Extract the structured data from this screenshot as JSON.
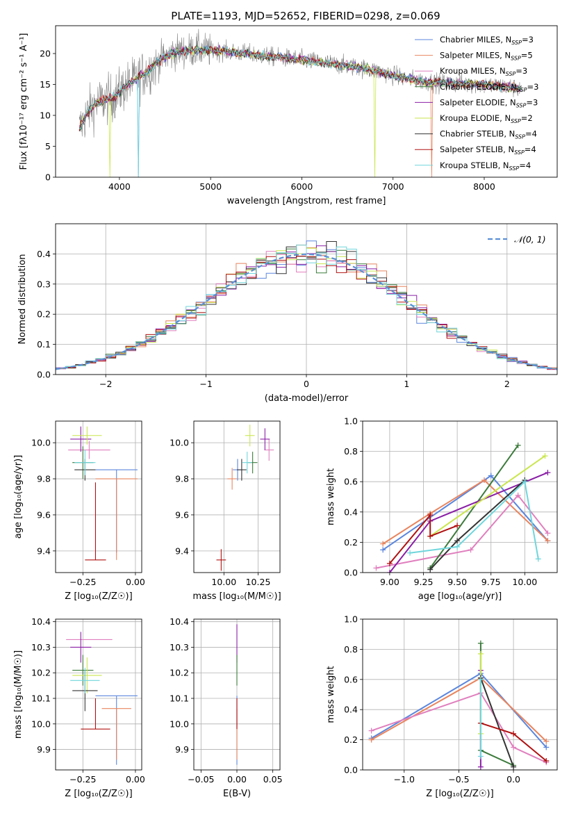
{
  "figure_title": "PLATE=1193, MJD=52652, FIBERID=0298, z=0.069",
  "colors": {
    "chabrier_miles": "#5b86dd",
    "salpeter_miles": "#e8845e",
    "kroupa_miles": "#e07fbe",
    "chabrier_elodie": "#3b7a3b",
    "salpeter_elodie": "#8a1fa6",
    "kroupa_elodie": "#c9e64d",
    "chabrier_stelib": "#333333",
    "salpeter_stelib": "#b01010",
    "kroupa_stelib": "#6fd6dc",
    "normal_curve": "#5b8fd6",
    "observed_spectrum": "#808080"
  },
  "chart_data": [
    {
      "id": "spectrum",
      "type": "line",
      "title": "",
      "xlabel": "wavelength [Angstrom, rest frame]",
      "ylabel": "Flux [fλ10⁻¹⁷ erg cm⁻² s⁻¹ A⁻¹]",
      "xlim": [
        3300,
        8800
      ],
      "ylim": [
        0,
        24.5
      ],
      "xticks": [
        4000,
        5000,
        6000,
        7000,
        8000
      ],
      "yticks": [
        0,
        5,
        10,
        15,
        20
      ],
      "grid": false,
      "legend_position": "top-right",
      "legend": [
        "Chabrier MILES, N_SSP=3",
        "Salpeter MILES, N_SSP=5",
        "Kroupa MILES, N_SSP=3",
        "Chabrier ELODIE, N_SSP=3",
        "Salpeter ELODIE, N_SSP=3",
        "Kroupa ELODIE, N_SSP=2",
        "Chabrier STELIB, N_SSP=4",
        "Salpeter STELIB, N_SSP=4",
        "Kroupa STELIB, N_SSP=4"
      ],
      "continuum": {
        "x": [
          3550,
          3650,
          3750,
          3850,
          3950,
          4050,
          4150,
          4300,
          4450,
          4600,
          4800,
          5000,
          5200,
          5400,
          5600,
          5800,
          6000,
          6200,
          6400,
          6600,
          6800,
          7000,
          7200,
          7400,
          7600,
          7800,
          8000,
          8200,
          8400
        ],
        "y": [
          7.5,
          10.5,
          12.0,
          12.5,
          13.0,
          14.5,
          15.5,
          17.0,
          19.0,
          20.2,
          20.6,
          20.5,
          20.3,
          20.0,
          19.6,
          19.3,
          19.0,
          18.6,
          18.2,
          17.8,
          17.2,
          16.5,
          15.8,
          15.4,
          15.2,
          15.1,
          14.9,
          14.7,
          14.3
        ]
      }
    },
    {
      "id": "residuals",
      "type": "bar",
      "title": "",
      "xlabel": "(data-model)/error",
      "ylabel": "Normed distribution",
      "xlim": [
        -2.5,
        2.5
      ],
      "ylim": [
        0,
        0.5
      ],
      "xticks": [
        -2,
        -1,
        0,
        1,
        2
      ],
      "yticks": [
        0.0,
        0.1,
        0.2,
        0.3,
        0.4
      ],
      "grid": true,
      "legend_position": "top-right",
      "legend": [
        "𝒩(0, 1)"
      ],
      "bin_width": 0.1
    },
    {
      "id": "age_vs_z",
      "type": "scatter",
      "xlabel": "Z [log₁₀(Z/Z☉)]",
      "ylabel": "age  [log₁₀(age/yr)]",
      "xlim": [
        -0.38,
        0.03
      ],
      "ylim": [
        9.28,
        10.12
      ],
      "xticks": [
        -0.25,
        0.0
      ],
      "yticks": [
        9.4,
        9.6,
        9.8,
        10.0
      ],
      "grid": true,
      "series": [
        {
          "key": "chabrier_miles",
          "x": -0.09,
          "xerr": [
            0.1,
            0.1
          ],
          "y": 9.85,
          "yerr": [
            0.46,
            0.0
          ]
        },
        {
          "key": "salpeter_miles",
          "x": -0.09,
          "xerr": [
            0.1,
            0.1
          ],
          "y": 9.8,
          "yerr": [
            0.45,
            0.0
          ]
        },
        {
          "key": "kroupa_miles",
          "x": -0.22,
          "xerr": [
            0.1,
            0.1
          ],
          "y": 9.96,
          "yerr": [
            0.05,
            0.05
          ]
        },
        {
          "key": "chabrier_elodie",
          "x": -0.25,
          "xerr": [
            0.05,
            0.05
          ],
          "y": 9.89,
          "yerr": [
            0.09,
            0.09
          ]
        },
        {
          "key": "salpeter_elodie",
          "x": -0.26,
          "xerr": [
            0.05,
            0.05
          ],
          "y": 10.02,
          "yerr": [
            0.07,
            0.07
          ]
        },
        {
          "key": "kroupa_elodie",
          "x": -0.23,
          "xerr": [
            0.07,
            0.07
          ],
          "y": 10.04,
          "yerr": [
            0.05,
            0.05
          ]
        },
        {
          "key": "chabrier_stelib",
          "x": -0.24,
          "xerr": [
            0.05,
            0.05
          ],
          "y": 9.85,
          "yerr": [
            0.06,
            0.06
          ]
        },
        {
          "key": "salpeter_stelib",
          "x": -0.19,
          "xerr": [
            0.05,
            0.05
          ],
          "y": 9.35,
          "yerr": [
            0.0,
            0.43
          ]
        },
        {
          "key": "kroupa_stelib",
          "x": -0.24,
          "xerr": [
            0.05,
            0.05
          ],
          "y": 9.89,
          "yerr": [
            0.07,
            0.07
          ]
        }
      ]
    },
    {
      "id": "age_vs_mass",
      "type": "scatter",
      "xlabel": "mass [log₁₀(M/M☉)]",
      "ylabel": "",
      "xlim": [
        9.78,
        10.41
      ],
      "ylim": [
        9.28,
        10.12
      ],
      "xticks": [
        10.0,
        10.25
      ],
      "yticks": [
        9.4,
        9.6,
        9.8,
        10.0
      ],
      "grid": true,
      "series": [
        {
          "key": "chabrier_miles",
          "x": 10.1,
          "y": 9.85
        },
        {
          "key": "salpeter_miles",
          "x": 10.06,
          "y": 9.8
        },
        {
          "key": "kroupa_miles",
          "x": 10.33,
          "y": 9.96
        },
        {
          "key": "chabrier_elodie",
          "x": 10.21,
          "y": 9.89
        },
        {
          "key": "salpeter_elodie",
          "x": 10.3,
          "y": 10.02
        },
        {
          "key": "kroupa_elodie",
          "x": 10.19,
          "y": 10.04
        },
        {
          "key": "chabrier_stelib",
          "x": 10.13,
          "y": 9.85
        },
        {
          "key": "salpeter_stelib",
          "x": 9.98,
          "y": 9.35
        },
        {
          "key": "kroupa_stelib",
          "x": 10.17,
          "y": 9.89
        }
      ]
    },
    {
      "id": "weight_vs_age",
      "type": "line",
      "xlabel": "age  [log₁₀(age/yr)]",
      "ylabel": "mass weight",
      "xlim": [
        8.8,
        10.24
      ],
      "ylim": [
        0,
        1.0
      ],
      "xticks": [
        9.0,
        9.25,
        9.5,
        9.75,
        10.0
      ],
      "yticks": [
        0.0,
        0.2,
        0.4,
        0.6,
        0.8,
        1.0
      ],
      "grid": true,
      "series": [
        {
          "key": "chabrier_miles",
          "x": [
            8.95,
            9.75,
            10.17
          ],
          "y": [
            0.15,
            0.64,
            0.21
          ]
        },
        {
          "key": "salpeter_miles",
          "x": [
            8.95,
            9.3,
            9.7,
            10.17
          ],
          "y": [
            0.19,
            0.39,
            0.61,
            0.21
          ]
        },
        {
          "key": "kroupa_miles",
          "x": [
            8.9,
            9.6,
            9.95,
            10.17
          ],
          "y": [
            0.03,
            0.15,
            0.51,
            0.26
          ]
        },
        {
          "key": "chabrier_elodie",
          "x": [
            9.3,
            9.95
          ],
          "y": [
            0.03,
            0.84
          ]
        },
        {
          "key": "salpeter_elodie",
          "x": [
            9.0,
            9.3,
            10.17
          ],
          "y": [
            0.0,
            0.34,
            0.66
          ]
        },
        {
          "key": "kroupa_elodie",
          "x": [
            9.3,
            10.15
          ],
          "y": [
            0.24,
            0.77
          ]
        },
        {
          "key": "chabrier_stelib",
          "x": [
            9.3,
            9.5,
            10.0
          ],
          "y": [
            0.02,
            0.21,
            0.61
          ]
        },
        {
          "key": "salpeter_stelib",
          "x": [
            9.0,
            9.3,
            9.3,
            9.5
          ],
          "y": [
            0.06,
            0.38,
            0.24,
            0.31
          ]
        },
        {
          "key": "kroupa_stelib",
          "x": [
            9.15,
            9.5,
            10.0,
            10.1
          ],
          "y": [
            0.13,
            0.17,
            0.6,
            0.09
          ]
        }
      ]
    },
    {
      "id": "mass_vs_z",
      "type": "scatter",
      "xlabel": "Z [log₁₀(Z/Z☉)]",
      "ylabel": "mass [log₁₀(M/M☉)]",
      "xlim": [
        -0.38,
        0.03
      ],
      "ylim": [
        9.82,
        10.41
      ],
      "xticks": [
        -0.25,
        0.0
      ],
      "yticks": [
        9.9,
        10.0,
        10.1,
        10.2,
        10.3,
        10.4
      ],
      "grid": true,
      "series": [
        {
          "key": "chabrier_miles",
          "x": -0.09,
          "xerr": [
            0.1,
            0.1
          ],
          "y": 10.11,
          "yerr": [
            0.27,
            0.0
          ]
        },
        {
          "key": "salpeter_miles",
          "x": -0.09,
          "xerr": [
            0.07,
            0.07
          ],
          "y": 10.06,
          "yerr": [
            0.2,
            0.0
          ]
        },
        {
          "key": "kroupa_miles",
          "x": -0.22,
          "xerr": [
            0.11,
            0.11
          ],
          "y": 10.33,
          "yerr": [
            0.0,
            0.0
          ]
        },
        {
          "key": "chabrier_elodie",
          "x": -0.25,
          "xerr": [
            0.05,
            0.05
          ],
          "y": 10.21,
          "yerr": [
            0.06,
            0.06
          ]
        },
        {
          "key": "salpeter_elodie",
          "x": -0.26,
          "xerr": [
            0.05,
            0.05
          ],
          "y": 10.3,
          "yerr": [
            0.06,
            0.06
          ]
        },
        {
          "key": "kroupa_elodie",
          "x": -0.23,
          "xerr": [
            0.07,
            0.07
          ],
          "y": 10.19,
          "yerr": [
            0.07,
            0.07
          ]
        },
        {
          "key": "chabrier_stelib",
          "x": -0.24,
          "xerr": [
            0.06,
            0.06
          ],
          "y": 10.13,
          "yerr": [
            0.08,
            0.08
          ]
        },
        {
          "key": "salpeter_stelib",
          "x": -0.19,
          "xerr": [
            0.07,
            0.07
          ],
          "y": 9.98,
          "yerr": [
            0.0,
            0.12
          ]
        },
        {
          "key": "kroupa_stelib",
          "x": -0.24,
          "xerr": [
            0.07,
            0.07
          ],
          "y": 10.17,
          "yerr": [
            0.05,
            0.05
          ]
        }
      ]
    },
    {
      "id": "mass_vs_ebv",
      "type": "scatter",
      "xlabel": "E(B-V)",
      "ylabel": "",
      "xlim": [
        -0.06,
        0.06
      ],
      "ylim": [
        9.82,
        10.41
      ],
      "xticks": [
        -0.05,
        0.0,
        0.05
      ],
      "yticks": [
        9.9,
        10.0,
        10.1,
        10.2,
        10.3,
        10.4
      ],
      "grid": true,
      "series": [
        {
          "key": "chabrier_miles",
          "x": 0.0,
          "y": 10.11,
          "yerr": [
            0.27,
            0.0
          ]
        },
        {
          "key": "salpeter_miles",
          "x": 0.0,
          "y": 10.06,
          "yerr": [
            0.2,
            0.0
          ]
        },
        {
          "key": "salpeter_elodie",
          "x": 0.0,
          "y": 10.3,
          "yerr": [
            0.06,
            0.09
          ]
        },
        {
          "key": "chabrier_elodie",
          "x": 0.0,
          "y": 10.21,
          "yerr": [
            0.06,
            0.06
          ]
        },
        {
          "key": "salpeter_stelib",
          "x": 0.0,
          "y": 9.98,
          "yerr": [
            0.0,
            0.12
          ]
        }
      ]
    },
    {
      "id": "weight_vs_z",
      "type": "line",
      "xlabel": "Z [log₁₀(Z/Z☉)]",
      "ylabel": "mass weight",
      "xlim": [
        -1.38,
        0.4
      ],
      "ylim": [
        0,
        1.0
      ],
      "xticks": [
        -1.0,
        -0.5,
        0.0
      ],
      "yticks": [
        0.0,
        0.2,
        0.4,
        0.6,
        0.8,
        1.0
      ],
      "grid": true,
      "series": [
        {
          "key": "chabrier_miles",
          "x": [
            -1.3,
            -0.3,
            0.3
          ],
          "y": [
            0.21,
            0.64,
            0.15
          ]
        },
        {
          "key": "salpeter_miles",
          "x": [
            -1.3,
            -0.3,
            0.3
          ],
          "y": [
            0.2,
            0.61,
            0.19
          ]
        },
        {
          "key": "kroupa_miles",
          "x": [
            -1.3,
            -0.3,
            0.0,
            0.3
          ],
          "y": [
            0.26,
            0.51,
            0.15,
            0.05
          ]
        },
        {
          "key": "chabrier_elodie",
          "x": [
            -0.3,
            -0.3,
            0.0
          ],
          "y": [
            0.84,
            0.13,
            0.03
          ]
        },
        {
          "key": "salpeter_elodie",
          "x": [
            -0.3,
            -0.3
          ],
          "y": [
            0.02,
            0.66
          ]
        },
        {
          "key": "kroupa_elodie",
          "x": [
            -0.3,
            -0.3
          ],
          "y": [
            0.24,
            0.77
          ]
        },
        {
          "key": "chabrier_stelib",
          "x": [
            -0.3,
            0.0
          ],
          "y": [
            0.61,
            0.02
          ]
        },
        {
          "key": "salpeter_stelib",
          "x": [
            -0.3,
            0.0,
            0.3
          ],
          "y": [
            0.31,
            0.24,
            0.06
          ]
        },
        {
          "key": "kroupa_stelib",
          "x": [
            -0.3,
            -0.3
          ],
          "y": [
            0.09,
            0.6
          ]
        }
      ]
    }
  ]
}
